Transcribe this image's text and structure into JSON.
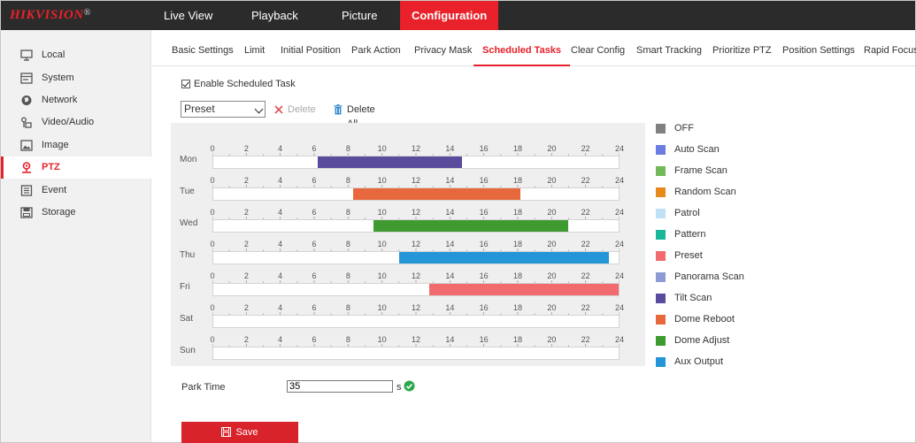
{
  "brand": {
    "logo": "HIKVISION",
    "reg": "®"
  },
  "topnav": [
    {
      "id": "live-view",
      "label": "Live View",
      "active": false
    },
    {
      "id": "playback",
      "label": "Playback",
      "active": false
    },
    {
      "id": "picture",
      "label": "Picture",
      "active": false
    },
    {
      "id": "configuration",
      "label": "Configuration",
      "active": true
    }
  ],
  "sidebar": {
    "items": [
      {
        "id": "local",
        "label": "Local",
        "icon": "monitor-icon",
        "active": false
      },
      {
        "id": "system",
        "label": "System",
        "icon": "system-icon",
        "active": false
      },
      {
        "id": "network",
        "label": "Network",
        "icon": "globe-icon",
        "active": false
      },
      {
        "id": "video-audio",
        "label": "Video/Audio",
        "icon": "video-audio-icon",
        "active": false
      },
      {
        "id": "image",
        "label": "Image",
        "icon": "image-icon",
        "active": false
      },
      {
        "id": "ptz",
        "label": "PTZ",
        "icon": "ptz-icon",
        "active": true
      },
      {
        "id": "event",
        "label": "Event",
        "icon": "event-icon",
        "active": false
      },
      {
        "id": "storage",
        "label": "Storage",
        "icon": "storage-icon",
        "active": false
      }
    ]
  },
  "tabs": [
    {
      "id": "basic-settings",
      "label": "Basic Settings",
      "active": false
    },
    {
      "id": "limit",
      "label": "Limit",
      "active": false
    },
    {
      "id": "initial-position",
      "label": "Initial Position",
      "active": false
    },
    {
      "id": "park-action",
      "label": "Park Action",
      "active": false
    },
    {
      "id": "privacy-mask",
      "label": "Privacy Mask",
      "active": false
    },
    {
      "id": "scheduled-tasks",
      "label": "Scheduled Tasks",
      "active": true
    },
    {
      "id": "clear-config",
      "label": "Clear Config",
      "active": false
    },
    {
      "id": "smart-tracking",
      "label": "Smart Tracking",
      "active": false
    },
    {
      "id": "prioritize-ptz",
      "label": "Prioritize PTZ",
      "active": false
    },
    {
      "id": "position-settings",
      "label": "Position Settings",
      "active": false
    },
    {
      "id": "rapid-focus",
      "label": "Rapid Focus",
      "active": false
    }
  ],
  "enable": {
    "label": "Enable Scheduled Task",
    "checked": true
  },
  "toolbar": {
    "task_type": "Preset",
    "delete_label": "Delete",
    "delete_all_label": "Delete All"
  },
  "hour_ticks": [
    "0",
    "2",
    "4",
    "6",
    "8",
    "10",
    "12",
    "14",
    "16",
    "18",
    "20",
    "22",
    "24"
  ],
  "schedule": [
    {
      "day": "Mon",
      "segments": [
        {
          "start": 6.2,
          "end": 14.7,
          "task": "Tilt Scan"
        }
      ]
    },
    {
      "day": "Tue",
      "segments": [
        {
          "start": 8.3,
          "end": 18.2,
          "task": "Dome Reboot"
        }
      ]
    },
    {
      "day": "Wed",
      "segments": [
        {
          "start": 9.5,
          "end": 21.0,
          "task": "Dome Adjust"
        }
      ]
    },
    {
      "day": "Thu",
      "segments": [
        {
          "start": 11.0,
          "end": 23.4,
          "task": "Aux Output"
        }
      ]
    },
    {
      "day": "Fri",
      "segments": [
        {
          "start": 12.8,
          "end": 24.0,
          "task": "Preset"
        }
      ]
    },
    {
      "day": "Sat",
      "segments": []
    },
    {
      "day": "Sun",
      "segments": []
    }
  ],
  "legend": [
    {
      "label": "OFF",
      "color": "#808080"
    },
    {
      "label": "Auto Scan",
      "color": "#6b7de3"
    },
    {
      "label": "Frame Scan",
      "color": "#72b95a"
    },
    {
      "label": "Random Scan",
      "color": "#e88a1a"
    },
    {
      "label": "Patrol",
      "color": "#bfe0f5"
    },
    {
      "label": "Pattern",
      "color": "#1ab69c"
    },
    {
      "label": "Preset",
      "color": "#f06a6e"
    },
    {
      "label": "Panorama Scan",
      "color": "#8c9bd1"
    },
    {
      "label": "Tilt Scan",
      "color": "#5b4b9c"
    },
    {
      "label": "Dome Reboot",
      "color": "#e8683e"
    },
    {
      "label": "Dome Adjust",
      "color": "#3f9a2f"
    },
    {
      "label": "Aux Output",
      "color": "#2496d8"
    }
  ],
  "park": {
    "label": "Park Time",
    "value": "35",
    "unit": "s"
  },
  "save_label": "Save"
}
